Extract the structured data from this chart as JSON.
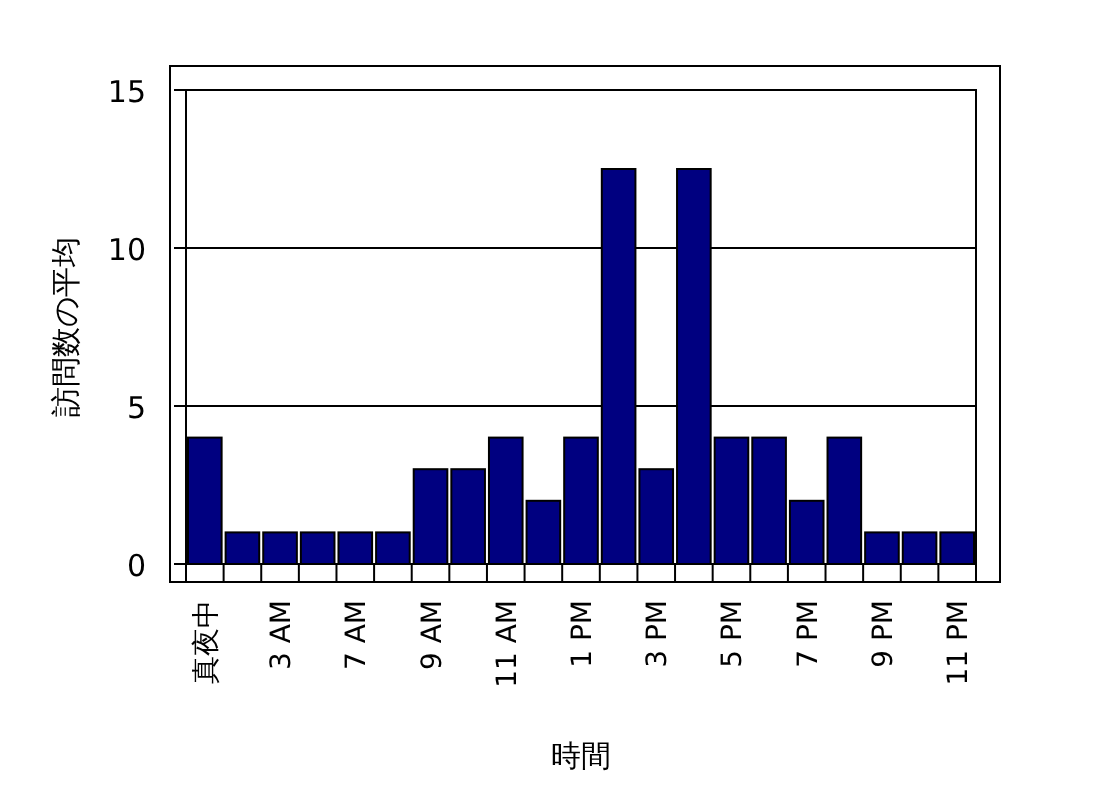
{
  "chart_data": {
    "type": "bar",
    "xlabel": "時間",
    "ylabel": "訪問数の平均",
    "categories": [
      "真夜中",
      null,
      "3 AM",
      null,
      "7 AM",
      null,
      "9 AM",
      null,
      "11 AM",
      null,
      "1 PM",
      null,
      "3 PM",
      null,
      "5 PM",
      null,
      "7 PM",
      null,
      "9 PM",
      null,
      "11 PM"
    ],
    "values": [
      4,
      1,
      1,
      1,
      1,
      1,
      3,
      3,
      4,
      2,
      4,
      12.5,
      3,
      12.5,
      4,
      4,
      2,
      4,
      1,
      1,
      1
    ],
    "color": "#000080",
    "ylim": [
      0,
      15
    ],
    "yticks": [
      0,
      5,
      10,
      15
    ],
    "grid": "y"
  }
}
